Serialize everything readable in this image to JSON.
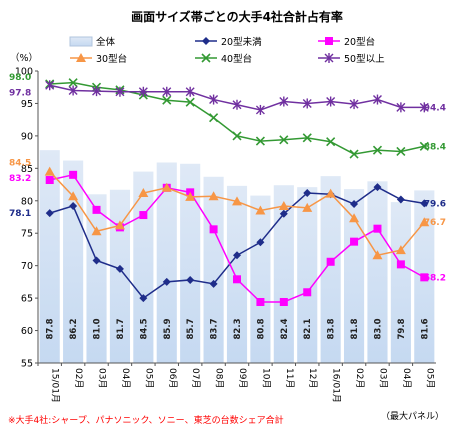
{
  "chart_data": {
    "type": "bar+line",
    "title": "画面サイズ帯ごとの大手4社合計占有率",
    "ylabel": "（%）",
    "ylim": [
      55,
      100
    ],
    "yticks": [
      55,
      60,
      65,
      70,
      75,
      80,
      85,
      90,
      95,
      100
    ],
    "categories": [
      "15/01月",
      "02月",
      "03月",
      "04月",
      "05月",
      "06月",
      "07月",
      "08月",
      "09月",
      "10月",
      "11月",
      "12月",
      "16/01月",
      "02月",
      "03月",
      "04月",
      "05月"
    ],
    "bars": {
      "name": "全体",
      "values": [
        87.8,
        86.2,
        81.0,
        81.7,
        84.5,
        85.9,
        85.7,
        83.7,
        82.3,
        80.8,
        82.4,
        82.1,
        83.8,
        81.8,
        83.0,
        79.8,
        81.6
      ],
      "labels": [
        "87.8",
        "86.2",
        "81.0",
        "81.7",
        "84.5",
        "85.9",
        "85.7",
        "83.7",
        "82.3",
        "80.8",
        "82.4",
        "82.1",
        "83.8",
        "81.8",
        "83.0",
        "79.8",
        "81.6"
      ],
      "color": "#c5d9f1"
    },
    "series": [
      {
        "name": "20型未満",
        "color": "#1f2d8a",
        "marker": "diamond",
        "values": [
          78.1,
          79.2,
          70.8,
          69.5,
          65.0,
          67.5,
          67.8,
          67.2,
          71.6,
          73.6,
          78.0,
          81.2,
          81.0,
          79.5,
          82.1,
          80.2,
          79.6
        ]
      },
      {
        "name": "20型台",
        "color": "#ff00ff",
        "marker": "square",
        "values": [
          83.2,
          84.0,
          78.6,
          75.9,
          77.8,
          82.0,
          81.3,
          75.6,
          67.9,
          64.4,
          64.4,
          65.9,
          70.6,
          73.7,
          75.7,
          70.2,
          68.2
        ]
      },
      {
        "name": "30型台",
        "color": "#f79646",
        "marker": "triangle",
        "values": [
          84.5,
          80.7,
          75.3,
          76.2,
          81.2,
          82.0,
          80.6,
          80.7,
          79.9,
          78.5,
          79.2,
          78.9,
          81.1,
          77.3,
          71.6,
          72.4,
          76.7
        ]
      },
      {
        "name": "40型台",
        "color": "#339933",
        "marker": "x",
        "values": [
          98.0,
          98.2,
          97.5,
          97.1,
          96.3,
          95.5,
          95.2,
          92.8,
          90.0,
          89.2,
          89.4,
          89.7,
          89.1,
          87.2,
          87.8,
          87.6,
          88.4
        ]
      },
      {
        "name": "50型以上",
        "color": "#7030a0",
        "marker": "star",
        "values": [
          97.8,
          97.0,
          96.9,
          96.8,
          96.8,
          96.8,
          96.8,
          95.6,
          94.8,
          94.0,
          95.3,
          95.0,
          95.3,
          94.9,
          95.6,
          94.4,
          94.4
        ]
      }
    ],
    "annotations": [
      {
        "text": "98.0",
        "series": "40型台",
        "side": "start",
        "color": "#339933"
      },
      {
        "text": "97.8",
        "series": "50型以上",
        "side": "start",
        "color": "#7030a0"
      },
      {
        "text": "84.5",
        "series": "30型台",
        "side": "start",
        "color": "#f79646"
      },
      {
        "text": "83.2",
        "series": "20型台",
        "side": "start",
        "color": "#ff00ff"
      },
      {
        "text": "78.1",
        "series": "20型未満",
        "side": "start",
        "color": "#1f2d8a"
      },
      {
        "text": "94.4",
        "series": "50型以上",
        "side": "end",
        "color": "#7030a0"
      },
      {
        "text": "88.4",
        "series": "40型台",
        "side": "end",
        "color": "#339933"
      },
      {
        "text": "79.6",
        "series": "20型未満",
        "side": "end",
        "color": "#1f2d8a"
      },
      {
        "text": "76.7",
        "series": "30型台",
        "side": "end",
        "color": "#f79646"
      },
      {
        "text": "68.2",
        "series": "20型台",
        "side": "end",
        "color": "#ff00ff"
      }
    ],
    "legend_position": "top",
    "grid": false
  },
  "footnote": "※大手4社:シャープ、パナソニック、ソニー、東芝の台数シェア合計",
  "footnote_color": "#ff0000",
  "corner_note": "（最大パネル）"
}
